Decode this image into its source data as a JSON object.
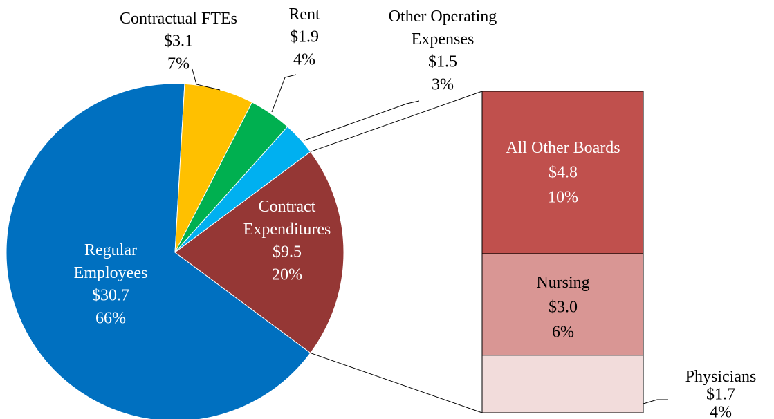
{
  "chart_data": {
    "type": "pie-of-bar",
    "categories": [
      "Regular Employees",
      "Contractual FTEs",
      "Rent",
      "Other Operating Expenses",
      "Contract Expenditures"
    ],
    "values": [
      30.7,
      3.1,
      1.9,
      1.5,
      9.5
    ],
    "value_labels": [
      "$30.7",
      "$3.1",
      "$1.9",
      "$1.5",
      "$9.5"
    ],
    "percent_labels": [
      "66%",
      "7%",
      "4%",
      "3%",
      "20%"
    ],
    "colors": [
      "#0070c0",
      "#ffc000",
      "#00b050",
      "#00b0f0",
      "#953735"
    ],
    "breakdown": {
      "categories": [
        "All Other Boards",
        "Nursing",
        "Physicians"
      ],
      "values": [
        4.8,
        3.0,
        1.7
      ],
      "value_labels": [
        "$4.8",
        "$3.0",
        "$1.7"
      ],
      "percent_labels": [
        "10%",
        "6%",
        "4%"
      ],
      "colors": [
        "#c0504d",
        "#d99694",
        "#f2dcdb"
      ]
    }
  }
}
